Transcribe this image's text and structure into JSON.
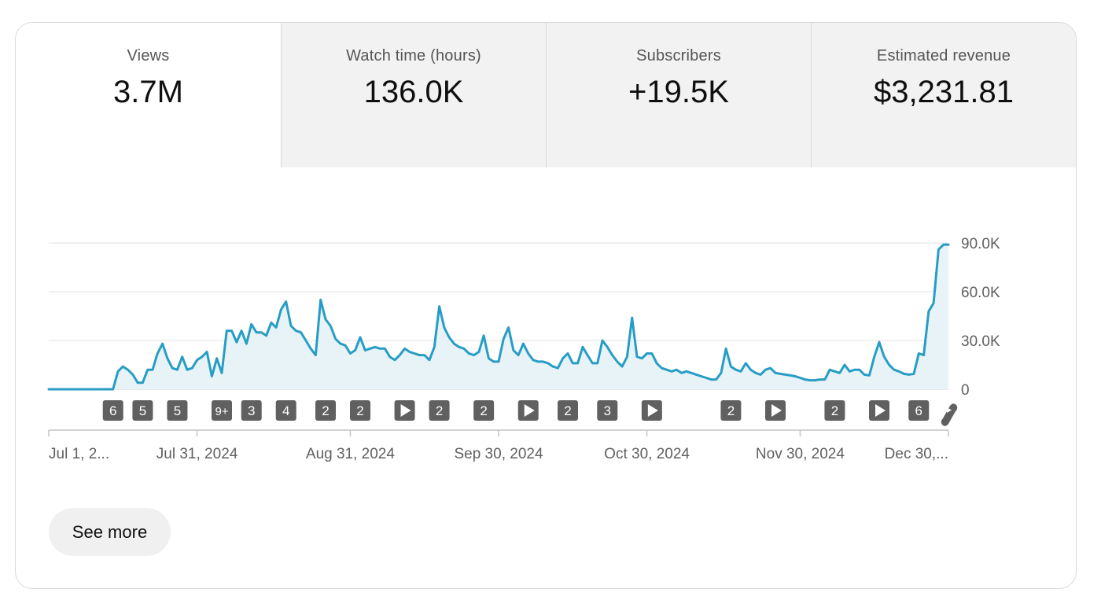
{
  "metrics": [
    {
      "label": "Views",
      "value": "3.7M"
    },
    {
      "label": "Watch time (hours)",
      "value": "136.0K"
    },
    {
      "label": "Subscribers",
      "value": "+19.5K"
    },
    {
      "label": "Estimated revenue",
      "value": "$3,231.81"
    }
  ],
  "see_more_label": "See more",
  "colors": {
    "line": "#279dc6",
    "fill": "#e8f3f7",
    "marker": "#606060"
  },
  "chart_data": {
    "type": "area",
    "title": "",
    "xlabel": "",
    "ylabel": "",
    "ylim": [
      0,
      90000
    ],
    "grid": true,
    "y_ticks": [
      {
        "value": 0,
        "label": "0"
      },
      {
        "value": 30000,
        "label": "30.0K"
      },
      {
        "value": 60000,
        "label": "60.0K"
      },
      {
        "value": 90000,
        "label": "90.0K"
      }
    ],
    "x_ticks": [
      {
        "day": 0,
        "label": "Jul 1, 2..."
      },
      {
        "day": 30,
        "label": "Jul 31, 2024"
      },
      {
        "day": 61,
        "label": "Aug 31, 2024"
      },
      {
        "day": 91,
        "label": "Sep 30, 2024"
      },
      {
        "day": 121,
        "label": "Oct 30, 2024"
      },
      {
        "day": 152,
        "label": "Nov 30, 2024"
      },
      {
        "day": 182,
        "label": "Dec 30,..."
      }
    ],
    "x_days": [
      0,
      1,
      2,
      3,
      4,
      5,
      6,
      7,
      8,
      9,
      10,
      11,
      12,
      13,
      14,
      15,
      16,
      17,
      18,
      19,
      20,
      21,
      22,
      23,
      24,
      25,
      26,
      27,
      28,
      29,
      30,
      31,
      32,
      33,
      34,
      35,
      36,
      37,
      38,
      39,
      40,
      41,
      42,
      43,
      44,
      45,
      46,
      47,
      48,
      49,
      50,
      51,
      52,
      53,
      54,
      55,
      56,
      57,
      58,
      59,
      60,
      61,
      62,
      63,
      64,
      65,
      66,
      67,
      68,
      69,
      70,
      71,
      72,
      73,
      74,
      75,
      76,
      77,
      78,
      79,
      80,
      81,
      82,
      83,
      84,
      85,
      86,
      87,
      88,
      89,
      90,
      91,
      92,
      93,
      94,
      95,
      96,
      97,
      98,
      99,
      100,
      101,
      102,
      103,
      104,
      105,
      106,
      107,
      108,
      109,
      110,
      111,
      112,
      113,
      114,
      115,
      116,
      117,
      118,
      119,
      120,
      121,
      122,
      123,
      124,
      125,
      126,
      127,
      128,
      129,
      130,
      131,
      132,
      133,
      134,
      135,
      136,
      137,
      138,
      139,
      140,
      141,
      142,
      143,
      144,
      145,
      146,
      147,
      148,
      149,
      150,
      151,
      152,
      153,
      154,
      155,
      156,
      157,
      158,
      159,
      160,
      161,
      162,
      163,
      164,
      165,
      166,
      167,
      168,
      169,
      170,
      171,
      172,
      173,
      174,
      175,
      176,
      177,
      178,
      179,
      180,
      181,
      182
    ],
    "series": [
      {
        "values": [
          0,
          0,
          0,
          0,
          0,
          0,
          0,
          0,
          0,
          0,
          0,
          0,
          0,
          0,
          11000,
          14000,
          12000,
          9000,
          4000,
          4000,
          12000,
          12000,
          22000,
          28000,
          19000,
          13000,
          12000,
          20000,
          12000,
          13000,
          18000,
          20000,
          23000,
          8000,
          19000,
          10000,
          36000,
          36000,
          29000,
          36000,
          28000,
          40000,
          35000,
          35000,
          33000,
          41000,
          38000,
          49000,
          54000,
          39000,
          36000,
          35000,
          30000,
          25000,
          21000,
          55000,
          43000,
          39000,
          31000,
          28000,
          27000,
          22000,
          24000,
          32000,
          24000,
          25000,
          26000,
          25000,
          25000,
          20000,
          18000,
          21000,
          25000,
          23000,
          22000,
          21000,
          21000,
          18000,
          26000,
          51000,
          38000,
          32000,
          28000,
          26000,
          25000,
          22000,
          21000,
          23000,
          33000,
          19000,
          17000,
          17000,
          31000,
          38000,
          24000,
          21000,
          28000,
          22000,
          18000,
          17000,
          17000,
          16000,
          14000,
          13000,
          19000,
          22000,
          16000,
          16000,
          26000,
          21000,
          16000,
          16000,
          30000,
          26000,
          21000,
          17000,
          14000,
          20000,
          44000,
          20000,
          19000,
          22000,
          22000,
          16000,
          13000,
          12000,
          11000,
          12000,
          10000,
          11000,
          10000,
          9000,
          8000,
          7000,
          6000,
          6000,
          10000,
          25000,
          14000,
          12000,
          11000,
          16000,
          12000,
          10000,
          9000,
          12000,
          13000,
          10000,
          9500,
          9000,
          8500,
          8000,
          7000,
          6000,
          5500,
          5500,
          6000,
          6000,
          12000,
          11000,
          10000,
          15000,
          11000,
          12000,
          12000,
          9000,
          8500,
          20000,
          29000,
          20000,
          15000,
          12000,
          11000,
          9500,
          9000,
          9500,
          22000,
          21000,
          48000,
          53000,
          86000,
          89000,
          89000
        ]
      }
    ],
    "markers": [
      {
        "day": 13,
        "label": "6"
      },
      {
        "day": 19,
        "label": "5"
      },
      {
        "day": 26,
        "label": "5"
      },
      {
        "day": 35,
        "label": "9+"
      },
      {
        "day": 41,
        "label": "3"
      },
      {
        "day": 48,
        "label": "4"
      },
      {
        "day": 56,
        "label": "2"
      },
      {
        "day": 63,
        "label": "2"
      },
      {
        "day": 72,
        "label": "play-icon"
      },
      {
        "day": 79,
        "label": "2"
      },
      {
        "day": 88,
        "label": "2"
      },
      {
        "day": 97,
        "label": "play-icon"
      },
      {
        "day": 105,
        "label": "2"
      },
      {
        "day": 113,
        "label": "3"
      },
      {
        "day": 122,
        "label": "play-icon"
      },
      {
        "day": 138,
        "label": "2"
      },
      {
        "day": 147,
        "label": "play-icon"
      },
      {
        "day": 159,
        "label": "2"
      },
      {
        "day": 168,
        "label": "play-icon"
      },
      {
        "day": 176,
        "label": "6"
      },
      {
        "day": 182,
        "label": "shorts-icon"
      }
    ]
  }
}
